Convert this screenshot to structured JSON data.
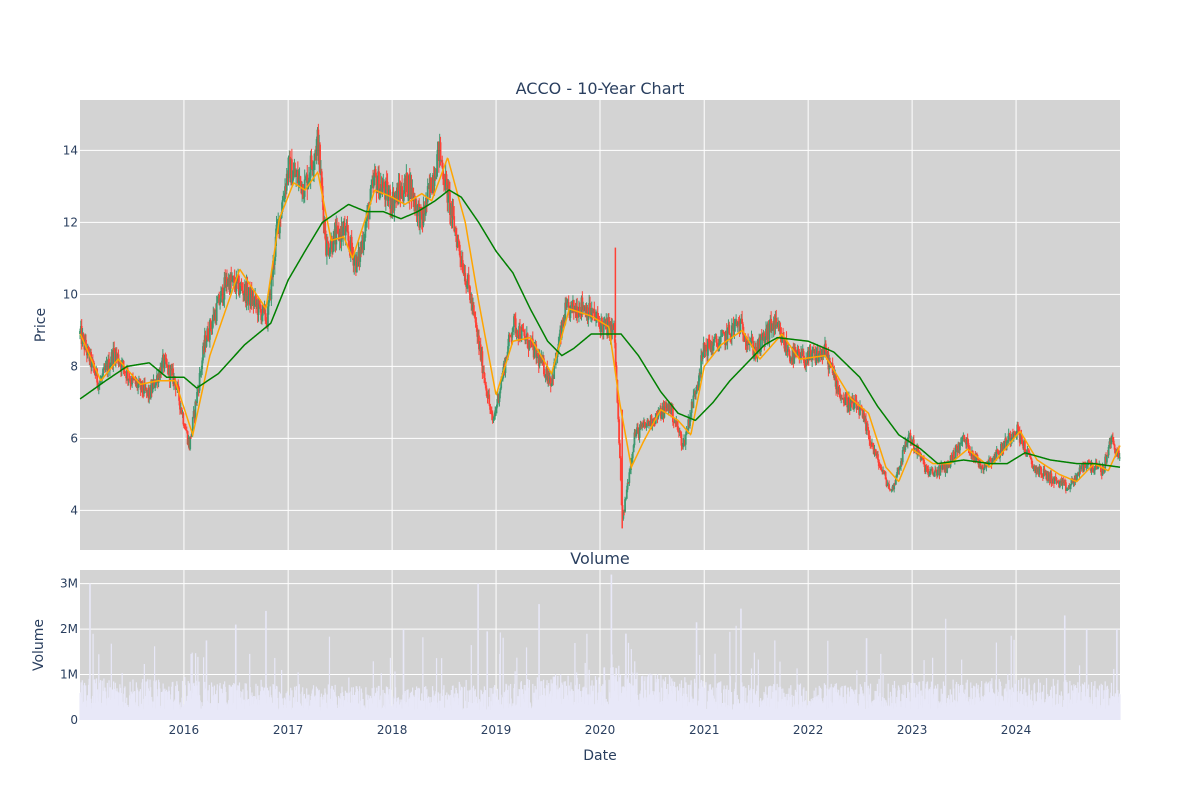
{
  "chart_data": [
    {
      "type": "candlestick",
      "title": "ACCO - 10-Year Chart",
      "ylabel": "Price",
      "ylim": [
        2.9,
        15.4
      ],
      "xlim": [
        "2015-01-01",
        "2024-12-31"
      ],
      "yticks": [
        4,
        6,
        8,
        10,
        12,
        14
      ],
      "grid": true,
      "colors": {
        "background": "#d3d3d3",
        "grid": "#ffffff",
        "up": "#3d9970",
        "down": "#ff4136",
        "ma_fast": "#ffa500",
        "ma_slow": "#008000"
      },
      "close_keypoints": [
        [
          "2015-01-02",
          8.9
        ],
        [
          "2015-03-10",
          7.5
        ],
        [
          "2015-05-01",
          8.4
        ],
        [
          "2015-07-01",
          7.6
        ],
        [
          "2015-09-01",
          7.2
        ],
        [
          "2015-10-20",
          8.1
        ],
        [
          "2015-12-01",
          7.6
        ],
        [
          "2016-01-20",
          5.8
        ],
        [
          "2016-03-15",
          8.7
        ],
        [
          "2016-06-01",
          10.4
        ],
        [
          "2016-08-01",
          10.1
        ],
        [
          "2016-10-20",
          9.3
        ],
        [
          "2016-11-20",
          11.6
        ],
        [
          "2017-01-01",
          13.5
        ],
        [
          "2017-03-01",
          13.0
        ],
        [
          "2017-04-15",
          14.3
        ],
        [
          "2017-05-15",
          11.3
        ],
        [
          "2017-07-15",
          11.8
        ],
        [
          "2017-09-01",
          10.8
        ],
        [
          "2017-11-01",
          13.2
        ],
        [
          "2018-01-01",
          12.6
        ],
        [
          "2018-03-01",
          13.1
        ],
        [
          "2018-04-15",
          12.0
        ],
        [
          "2018-06-15",
          14.0
        ],
        [
          "2018-08-01",
          12.1
        ],
        [
          "2018-10-01",
          10.0
        ],
        [
          "2018-11-15",
          8.0
        ],
        [
          "2018-12-20",
          6.4
        ],
        [
          "2019-03-01",
          9.2
        ],
        [
          "2019-05-01",
          8.6
        ],
        [
          "2019-07-15",
          7.6
        ],
        [
          "2019-09-01",
          9.5
        ],
        [
          "2019-11-01",
          9.7
        ],
        [
          "2020-01-15",
          9.1
        ],
        [
          "2020-02-20",
          9.0
        ],
        [
          "2020-03-20",
          3.7
        ],
        [
          "2020-05-01",
          6.1
        ],
        [
          "2020-07-15",
          6.6
        ],
        [
          "2020-09-01",
          6.9
        ],
        [
          "2020-10-20",
          5.8
        ],
        [
          "2021-01-01",
          8.5
        ],
        [
          "2021-03-01",
          8.7
        ],
        [
          "2021-05-01",
          9.2
        ],
        [
          "2021-07-01",
          8.4
        ],
        [
          "2021-09-01",
          9.2
        ],
        [
          "2021-11-01",
          8.3
        ],
        [
          "2022-01-01",
          8.2
        ],
        [
          "2022-03-01",
          8.4
        ],
        [
          "2022-05-01",
          7.1
        ],
        [
          "2022-07-01",
          6.8
        ],
        [
          "2022-09-01",
          5.4
        ],
        [
          "2022-10-20",
          4.5
        ],
        [
          "2022-12-20",
          6.1
        ],
        [
          "2023-03-01",
          5.0
        ],
        [
          "2023-05-01",
          5.2
        ],
        [
          "2023-07-01",
          6.0
        ],
        [
          "2023-09-01",
          5.2
        ],
        [
          "2023-11-01",
          5.6
        ],
        [
          "2024-01-01",
          6.3
        ],
        [
          "2024-03-01",
          5.2
        ],
        [
          "2024-05-01",
          4.9
        ],
        [
          "2024-07-01",
          4.6
        ],
        [
          "2024-09-01",
          5.3
        ],
        [
          "2024-11-01",
          5.1
        ],
        [
          "2024-12-01",
          6.0
        ],
        [
          "2024-12-31",
          5.4
        ]
      ],
      "ma_fast_keypoints": [
        [
          "2015-01-02",
          8.9
        ],
        [
          "2015-03-15",
          7.6
        ],
        [
          "2015-05-15",
          8.2
        ],
        [
          "2015-08-01",
          7.5
        ],
        [
          "2015-10-01",
          7.6
        ],
        [
          "2015-12-01",
          7.6
        ],
        [
          "2016-02-01",
          6.1
        ],
        [
          "2016-04-01",
          8.3
        ],
        [
          "2016-07-15",
          10.7
        ],
        [
          "2016-10-15",
          9.6
        ],
        [
          "2016-12-01",
          12.1
        ],
        [
          "2017-01-20",
          13.1
        ],
        [
          "2017-03-01",
          12.9
        ],
        [
          "2017-04-15",
          13.4
        ],
        [
          "2017-06-01",
          11.5
        ],
        [
          "2017-07-15",
          11.6
        ],
        [
          "2017-08-15",
          11.0
        ],
        [
          "2017-11-01",
          12.9
        ],
        [
          "2018-01-01",
          12.7
        ],
        [
          "2018-02-15",
          12.5
        ],
        [
          "2018-04-15",
          12.8
        ],
        [
          "2018-05-20",
          12.6
        ],
        [
          "2018-07-15",
          13.8
        ],
        [
          "2018-09-15",
          12.0
        ],
        [
          "2018-11-01",
          9.8
        ],
        [
          "2019-01-01",
          7.2
        ],
        [
          "2019-03-01",
          8.7
        ],
        [
          "2019-05-01",
          8.8
        ],
        [
          "2019-07-15",
          7.8
        ],
        [
          "2019-09-15",
          9.6
        ],
        [
          "2019-12-01",
          9.4
        ],
        [
          "2020-02-01",
          9.1
        ],
        [
          "2020-03-10",
          7.0
        ],
        [
          "2020-04-20",
          5.2
        ],
        [
          "2020-06-01",
          5.9
        ],
        [
          "2020-08-01",
          6.8
        ],
        [
          "2020-10-01",
          6.5
        ],
        [
          "2020-11-15",
          6.1
        ],
        [
          "2021-01-01",
          8.0
        ],
        [
          "2021-03-01",
          8.6
        ],
        [
          "2021-05-15",
          9.0
        ],
        [
          "2021-07-15",
          8.2
        ],
        [
          "2021-10-01",
          8.9
        ],
        [
          "2021-12-01",
          8.2
        ],
        [
          "2022-03-01",
          8.3
        ],
        [
          "2022-06-01",
          7.1
        ],
        [
          "2022-08-01",
          6.7
        ],
        [
          "2022-10-01",
          5.2
        ],
        [
          "2022-11-15",
          4.8
        ],
        [
          "2023-01-01",
          5.7
        ],
        [
          "2023-03-15",
          5.3
        ],
        [
          "2023-05-15",
          5.3
        ],
        [
          "2023-07-15",
          5.7
        ],
        [
          "2023-10-01",
          5.2
        ],
        [
          "2024-01-15",
          6.2
        ],
        [
          "2024-03-15",
          5.4
        ],
        [
          "2024-06-01",
          5.0
        ],
        [
          "2024-08-01",
          4.8
        ],
        [
          "2024-10-01",
          5.3
        ],
        [
          "2024-11-20",
          5.1
        ],
        [
          "2024-12-31",
          5.8
        ]
      ],
      "ma_slow_keypoints": [
        [
          "2015-01-02",
          7.1
        ],
        [
          "2015-04-01",
          7.6
        ],
        [
          "2015-06-15",
          8.0
        ],
        [
          "2015-09-01",
          8.1
        ],
        [
          "2015-11-01",
          7.7
        ],
        [
          "2016-01-01",
          7.7
        ],
        [
          "2016-02-15",
          7.4
        ],
        [
          "2016-05-01",
          7.8
        ],
        [
          "2016-08-01",
          8.6
        ],
        [
          "2016-11-01",
          9.2
        ],
        [
          "2017-01-01",
          10.4
        ],
        [
          "2017-03-01",
          11.2
        ],
        [
          "2017-05-01",
          12.0
        ],
        [
          "2017-08-01",
          12.5
        ],
        [
          "2017-10-01",
          12.3
        ],
        [
          "2017-12-01",
          12.3
        ],
        [
          "2018-02-01",
          12.1
        ],
        [
          "2018-04-01",
          12.3
        ],
        [
          "2018-06-01",
          12.6
        ],
        [
          "2018-07-20",
          12.9
        ],
        [
          "2018-09-01",
          12.7
        ],
        [
          "2018-11-01",
          12.0
        ],
        [
          "2019-01-01",
          11.2
        ],
        [
          "2019-03-01",
          10.6
        ],
        [
          "2019-05-01",
          9.6
        ],
        [
          "2019-07-01",
          8.7
        ],
        [
          "2019-08-20",
          8.3
        ],
        [
          "2019-10-01",
          8.5
        ],
        [
          "2019-12-01",
          8.9
        ],
        [
          "2020-02-01",
          8.9
        ],
        [
          "2020-03-15",
          8.9
        ],
        [
          "2020-05-15",
          8.3
        ],
        [
          "2020-08-01",
          7.3
        ],
        [
          "2020-10-01",
          6.7
        ],
        [
          "2020-12-01",
          6.5
        ],
        [
          "2021-02-01",
          7.0
        ],
        [
          "2021-04-01",
          7.6
        ],
        [
          "2021-06-01",
          8.1
        ],
        [
          "2021-08-01",
          8.6
        ],
        [
          "2021-09-15",
          8.8
        ],
        [
          "2022-01-01",
          8.7
        ],
        [
          "2022-04-01",
          8.4
        ],
        [
          "2022-07-01",
          7.7
        ],
        [
          "2022-09-01",
          6.9
        ],
        [
          "2022-11-15",
          6.1
        ],
        [
          "2023-02-01",
          5.7
        ],
        [
          "2023-04-01",
          5.3
        ],
        [
          "2023-07-01",
          5.4
        ],
        [
          "2023-10-01",
          5.3
        ],
        [
          "2023-12-01",
          5.3
        ],
        [
          "2024-02-01",
          5.6
        ],
        [
          "2024-05-01",
          5.4
        ],
        [
          "2024-08-01",
          5.3
        ],
        [
          "2024-10-01",
          5.3
        ],
        [
          "2024-12-31",
          5.2
        ]
      ]
    },
    {
      "type": "bar",
      "title": "Volume",
      "xlabel": "Date",
      "ylabel": "Volume",
      "ylim": [
        0,
        3300000
      ],
      "yticks": [
        0,
        1000000,
        2000000,
        3000000
      ],
      "ytick_labels": [
        "0",
        "1M",
        "2M",
        "3M"
      ],
      "xticks": [
        "2016",
        "2017",
        "2018",
        "2019",
        "2020",
        "2021",
        "2022",
        "2023",
        "2024"
      ],
      "grid": true,
      "colors": {
        "background": "#d3d3d3",
        "grid": "#ffffff",
        "bar": "#e8e8f8"
      },
      "baseline_keypoints": [
        [
          "2015-01-01",
          700000
        ],
        [
          "2016-01-01",
          650000
        ],
        [
          "2017-01-01",
          600000
        ],
        [
          "2018-01-01",
          550000
        ],
        [
          "2019-01-01",
          600000
        ],
        [
          "2020-03-01",
          900000
        ],
        [
          "2021-01-01",
          650000
        ],
        [
          "2022-01-01",
          600000
        ],
        [
          "2023-01-01",
          650000
        ],
        [
          "2024-01-01",
          700000
        ],
        [
          "2024-12-31",
          650000
        ]
      ],
      "spikes": [
        [
          "2015-02-05",
          3000000
        ],
        [
          "2016-03-20",
          1750000
        ],
        [
          "2016-07-01",
          2100000
        ],
        [
          "2016-10-15",
          2400000
        ],
        [
          "2018-02-10",
          2000000
        ],
        [
          "2018-10-30",
          3000000
        ],
        [
          "2018-12-01",
          1950000
        ],
        [
          "2019-06-01",
          2550000
        ],
        [
          "2020-02-10",
          3200000
        ],
        [
          "2020-04-01",
          1900000
        ],
        [
          "2020-12-05",
          2150000
        ],
        [
          "2021-05-10",
          2450000
        ],
        [
          "2022-07-25",
          1800000
        ],
        [
          "2024-06-20",
          2300000
        ],
        [
          "2024-09-05",
          2000000
        ],
        [
          "2024-12-20",
          2000000
        ]
      ]
    }
  ]
}
